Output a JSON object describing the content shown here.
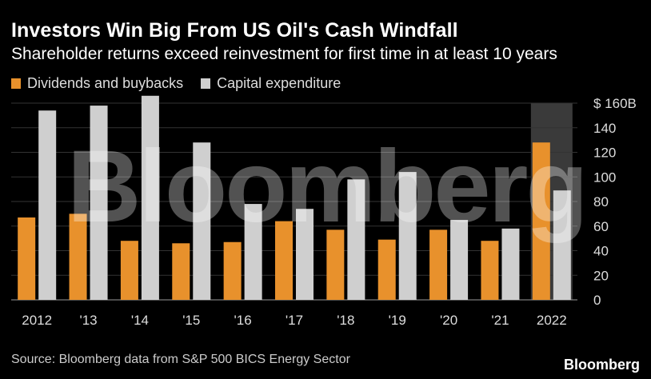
{
  "chart_data": {
    "type": "bar",
    "title": "Investors Win Big From US Oil's Cash Windfall",
    "subtitle": "Shareholder returns exceed reinvestment for first time in at least 10 years",
    "categories": [
      "2012",
      "'13",
      "'14",
      "'15",
      "'16",
      "'17",
      "'18",
      "'19",
      "'20",
      "'21",
      "2022"
    ],
    "series": [
      {
        "name": "Dividends and buybacks",
        "color": "#e8912c",
        "values": [
          67,
          70,
          48,
          46,
          47,
          64,
          57,
          49,
          57,
          48,
          128
        ]
      },
      {
        "name": "Capital expenditure",
        "color": "#cfcfcf",
        "values": [
          154,
          158,
          166,
          128,
          78,
          74,
          98,
          104,
          65,
          58,
          89
        ]
      }
    ],
    "ylim": [
      0,
      160
    ],
    "yticks": [
      "0",
      "20",
      "40",
      "60",
      "80",
      "100",
      "120",
      "140",
      "$ 160B"
    ],
    "highlight_category": "2022",
    "source": "Source: Bloomberg data from S&P 500 BICS Energy Sector",
    "brand": "Bloomberg",
    "watermark": "Bloomberg"
  }
}
